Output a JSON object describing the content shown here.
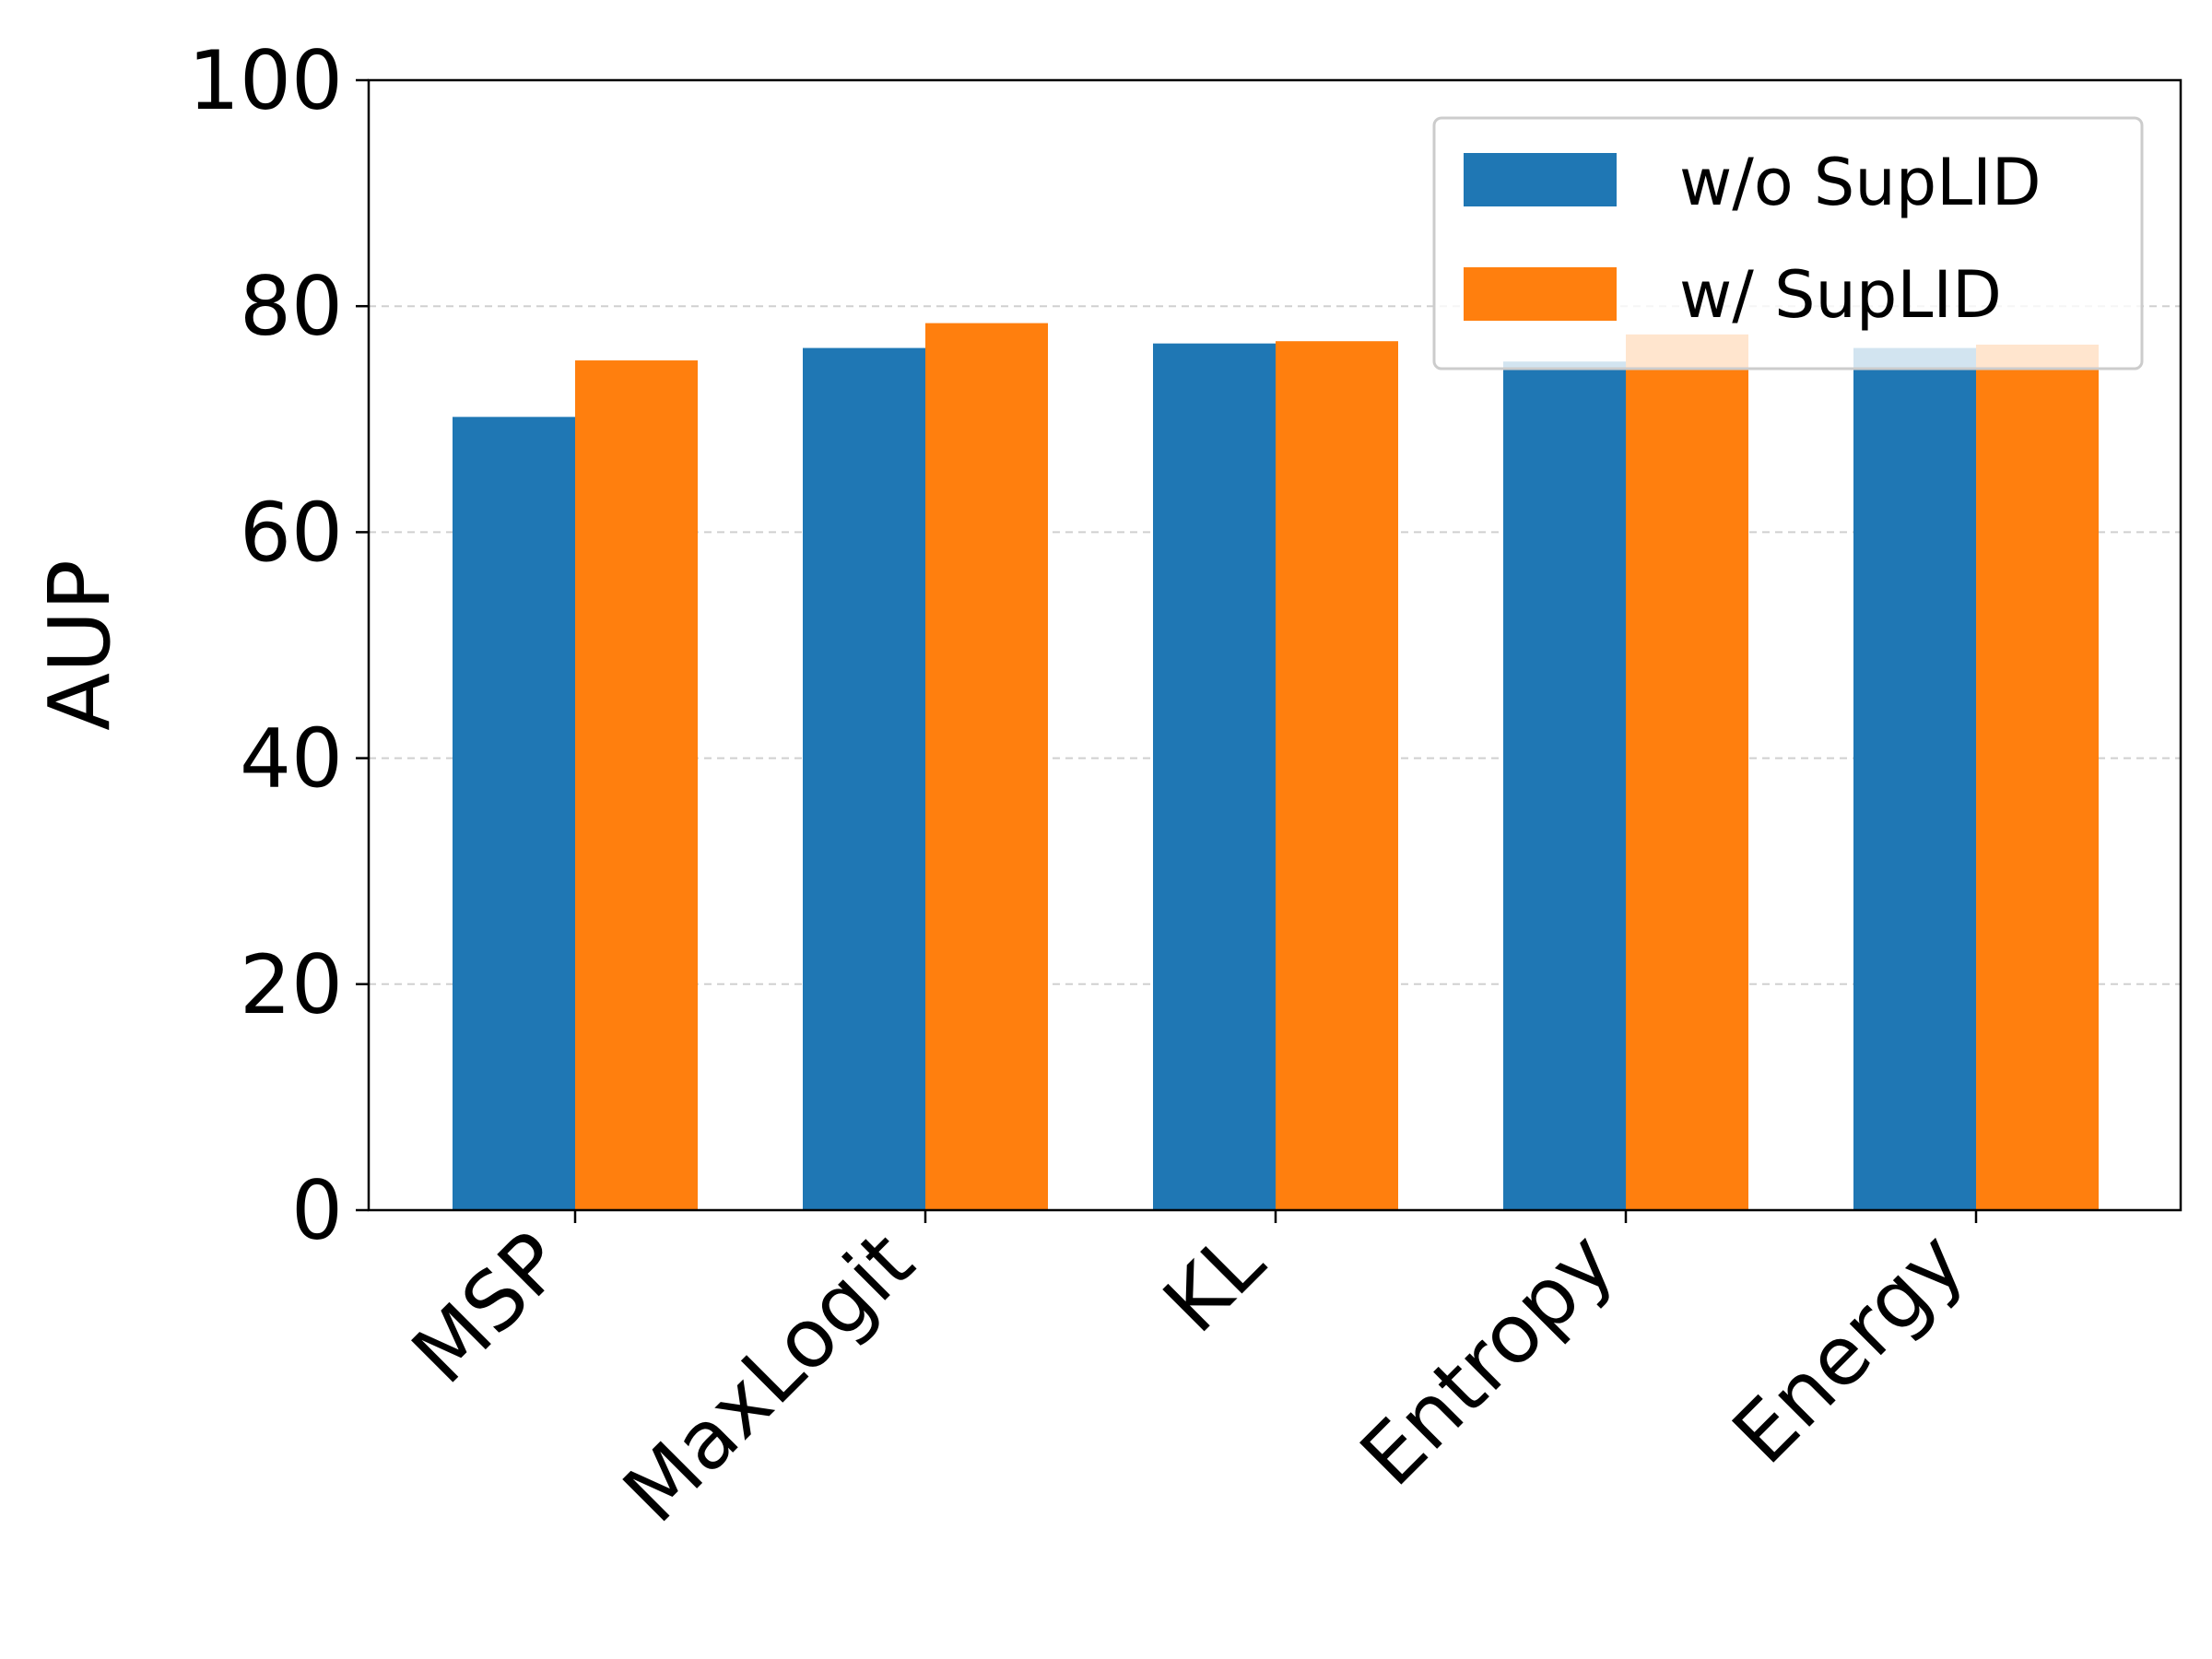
{
  "chart_data": {
    "type": "bar",
    "categories": [
      "MSP",
      "MaxLogit",
      "KL",
      "Entropy",
      "Energy"
    ],
    "series": [
      {
        "name": "w/o SupLID",
        "values": [
          70.2,
          76.3,
          76.7,
          75.1,
          76.3
        ],
        "color": "#1f77b4"
      },
      {
        "name": "w/ SupLID",
        "values": [
          75.2,
          78.5,
          76.9,
          77.5,
          76.6
        ],
        "color": "#ff7f0e"
      }
    ],
    "xlabel": "",
    "ylabel": "AUP",
    "ylim": [
      0,
      100
    ],
    "yticks": [
      "0",
      "20",
      "40",
      "60",
      "80",
      "100"
    ],
    "grid": "horizontal dashed",
    "legend_position": "upper-right"
  }
}
